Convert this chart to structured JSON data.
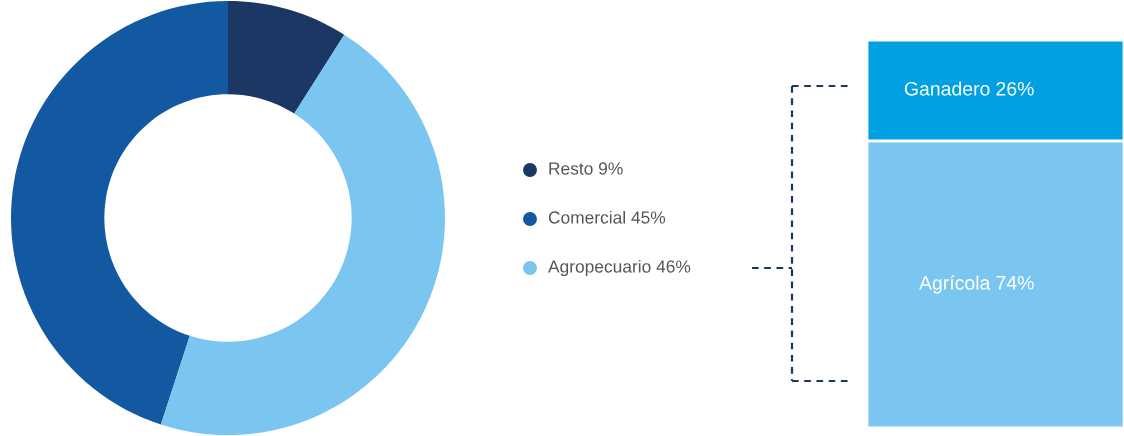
{
  "chart_data": [
    {
      "type": "donut",
      "categories": [
        "Resto",
        "Comercial",
        "Agropecuario"
      ],
      "values": [
        9,
        45,
        46
      ],
      "colors": [
        "#1b3764",
        "#1259a1",
        "#7ac6f0"
      ],
      "value_labels": [
        "9%",
        "45%",
        "46%"
      ],
      "legend": "right"
    },
    {
      "type": "bar",
      "stacked": true,
      "categories": [
        null
      ],
      "series": [
        {
          "name": "Agrícola",
          "color": "#7ac6f0",
          "values": [
            74
          ],
          "value_labels": [
            "74%"
          ]
        },
        {
          "name": "Ganadero",
          "color": "#00a0e3",
          "values": [
            26
          ],
          "value_labels": [
            "26%"
          ]
        }
      ]
    }
  ]
}
